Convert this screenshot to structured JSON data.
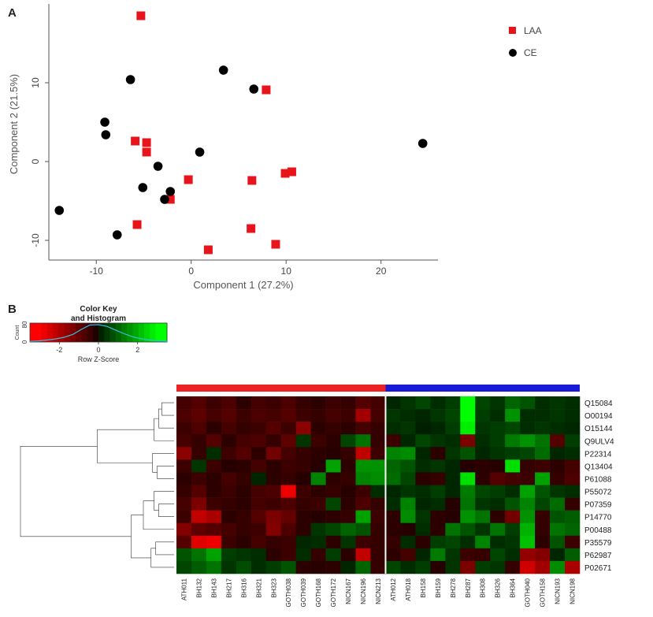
{
  "panels": {
    "a_label": "A",
    "b_label": "B"
  },
  "colors": {
    "laa": "#e8141b",
    "ce": "#000000",
    "axis": "#555555",
    "group_laa": "#ee2222",
    "group_ce": "#1a1ad6",
    "separator": "#ffffff"
  },
  "chart_data": [
    {
      "type": "scatter",
      "xlabel": "Component 1 (27.2%)",
      "ylabel": "Component 2 (21.5%)",
      "xlim": [
        -15,
        26
      ],
      "ylim": [
        -12.5,
        20
      ],
      "xticks": [
        -10,
        0,
        10,
        20
      ],
      "yticks": [
        -10,
        0,
        10
      ],
      "legend_position": "top-right",
      "series": [
        {
          "name": "LAA",
          "marker": "square",
          "x": [
            -5.3,
            -4.7,
            -4.7,
            -5.9,
            7.9,
            -0.3,
            6.4,
            9.9,
            10.6,
            -2.2,
            -5.7,
            6.3,
            8.9,
            1.8
          ],
          "y": [
            18.5,
            2.4,
            1.2,
            2.6,
            9.1,
            -2.3,
            -2.4,
            -1.5,
            -1.3,
            -4.8,
            -8.0,
            -8.5,
            -10.5,
            -11.2
          ]
        },
        {
          "name": "CE",
          "marker": "circle",
          "x": [
            -6.4,
            3.4,
            6.6,
            -9.1,
            -9.0,
            0.9,
            -3.5,
            24.4,
            -5.1,
            -2.2,
            -2.8,
            -13.9,
            -7.8
          ],
          "y": [
            10.4,
            11.6,
            9.2,
            5.0,
            3.4,
            1.2,
            -0.6,
            2.3,
            -3.3,
            -3.8,
            -4.8,
            -6.2,
            -9.3
          ]
        }
      ]
    },
    {
      "type": "heatmap",
      "color_key": {
        "title_line1": "Color Key",
        "title_line2": "and Histogram",
        "count_label": "Count",
        "xlabel": "Row Z-Score",
        "xticks": [
          -2,
          0,
          2
        ],
        "yticks": [
          0,
          80
        ],
        "range": [
          -3.5,
          3.5
        ],
        "histogram": [
          3,
          5,
          9,
          14,
          22,
          35,
          58,
          78,
          80,
          72,
          55,
          38,
          24,
          15,
          9,
          5,
          3
        ]
      },
      "rows": [
        "Q15084",
        "O00194",
        "O15144",
        "Q9ULV4",
        "P22314",
        "Q13404",
        "P61088",
        "P55072",
        "P07359",
        "P14770",
        "P00488",
        "P35579",
        "P62987",
        "P02671"
      ],
      "columns": [
        "ATH011",
        "BH132",
        "BH143",
        "BH217",
        "BH316",
        "BH321",
        "BH323",
        "GOTH038",
        "GOTH039",
        "GOTH168",
        "GOTH172",
        "NICN167",
        "NICN196",
        "NICN213",
        "ATH012",
        "ATH018",
        "BH158",
        "BH159",
        "BH278",
        "BH287",
        "BH308",
        "BH326",
        "BH364",
        "GOTH040",
        "GOTH158",
        "NICN193",
        "NICN198"
      ],
      "groups": [
        {
          "name": "LAA",
          "count": 14
        },
        {
          "name": "CE",
          "count": 13
        }
      ],
      "values": [
        [
          -0.6,
          -0.8,
          -0.5,
          -0.7,
          -0.3,
          -0.6,
          -0.5,
          -0.7,
          -0.4,
          -0.3,
          -0.5,
          -0.4,
          -0.8,
          -0.6,
          0.2,
          0.4,
          0.6,
          0.3,
          0.5,
          3.0,
          0.6,
          0.4,
          1.0,
          0.8,
          0.3,
          0.4,
          0.3
        ],
        [
          -0.7,
          -0.9,
          -0.6,
          -0.8,
          -0.5,
          -0.7,
          -0.6,
          -0.8,
          -0.5,
          -0.4,
          -0.6,
          -0.5,
          -1.8,
          -0.6,
          0.4,
          0.3,
          0.2,
          0.4,
          0.6,
          3.2,
          0.5,
          0.3,
          1.6,
          0.3,
          0.3,
          0.4,
          0.3
        ],
        [
          -0.5,
          -0.7,
          -0.3,
          -0.6,
          -0.4,
          -0.5,
          -0.8,
          -0.5,
          -1.5,
          -0.3,
          -0.4,
          -0.3,
          -0.6,
          -0.4,
          0.3,
          0.4,
          0.1,
          0.2,
          0.5,
          2.8,
          0.4,
          0.5,
          0.6,
          0.3,
          0.4,
          0.3,
          0.2
        ],
        [
          -0.6,
          -0.4,
          -0.8,
          -0.3,
          -0.6,
          -0.7,
          -0.4,
          -0.9,
          0.4,
          -0.5,
          -0.3,
          0.6,
          1.2,
          -0.4,
          -0.5,
          0.2,
          0.6,
          0.4,
          0.3,
          -1.3,
          0.3,
          0.5,
          1.3,
          1.6,
          1.2,
          -0.8,
          0.5
        ],
        [
          -1.5,
          -0.4,
          0.3,
          -0.5,
          -0.8,
          -0.3,
          -1.2,
          -0.6,
          -0.4,
          -0.3,
          -0.2,
          -0.4,
          -2.2,
          -0.5,
          1.4,
          1.5,
          0.2,
          -0.3,
          0.4,
          0.8,
          0.2,
          0.4,
          0.5,
          0.6,
          1.1,
          0.2,
          0.3
        ],
        [
          -0.5,
          0.4,
          -0.5,
          -0.2,
          -0.3,
          -0.6,
          -0.3,
          -0.5,
          -0.4,
          -0.2,
          1.8,
          -0.3,
          1.6,
          1.6,
          1.0,
          0.8,
          0.3,
          0.4,
          0.2,
          -0.2,
          -0.3,
          -0.2,
          2.6,
          -0.4,
          -0.5,
          -0.3,
          -0.6
        ],
        [
          -0.3,
          -0.5,
          -0.3,
          -0.6,
          -0.4,
          0.2,
          -0.3,
          -0.4,
          -0.2,
          1.4,
          -0.3,
          -0.4,
          1.4,
          1.5,
          1.1,
          0.6,
          -0.3,
          -0.4,
          0.2,
          2.6,
          -0.3,
          -0.8,
          -0.6,
          -0.5,
          1.8,
          -0.4,
          -0.7
        ],
        [
          -0.4,
          -0.8,
          -0.3,
          -0.5,
          -0.3,
          -0.6,
          -0.7,
          -2.8,
          -0.5,
          -0.3,
          -0.4,
          -0.2,
          -0.5,
          0.3,
          0.2,
          0.4,
          0.3,
          0.5,
          0.2,
          1.3,
          0.6,
          0.5,
          0.3,
          1.8,
          0.8,
          0.4,
          0.3
        ],
        [
          -0.6,
          -1.3,
          -0.5,
          -0.4,
          -0.3,
          -0.6,
          -0.5,
          -0.7,
          -0.4,
          -0.5,
          0.6,
          -0.3,
          -0.7,
          -0.4,
          0.3,
          1.4,
          0.2,
          0.3,
          -0.2,
          1.2,
          0.4,
          0.3,
          0.8,
          1.4,
          0.6,
          1.1,
          -0.4
        ],
        [
          -0.5,
          -2.2,
          -1.9,
          -0.3,
          -0.4,
          -0.8,
          -1.3,
          -1.0,
          -0.3,
          -0.2,
          -0.3,
          -0.4,
          1.8,
          -0.5,
          -0.3,
          1.5,
          0.4,
          -0.3,
          -0.2,
          1.6,
          1.2,
          -0.3,
          -1.2,
          1.6,
          -0.4,
          0.8,
          0.9
        ],
        [
          -1.4,
          -0.9,
          -0.8,
          -0.6,
          -0.4,
          -0.5,
          -1.4,
          -0.7,
          -0.3,
          0.4,
          0.6,
          1.0,
          0.8,
          -0.4,
          -0.3,
          -0.2,
          0.3,
          -0.3,
          1.2,
          0.8,
          0.4,
          1.2,
          0.5,
          2.0,
          -0.4,
          1.2,
          1.0
        ],
        [
          -0.8,
          -2.6,
          -2.8,
          -0.5,
          -0.3,
          -0.6,
          -0.4,
          -0.5,
          0.2,
          0.3,
          -0.3,
          0.4,
          -0.5,
          -0.4,
          -0.4,
          0.3,
          -0.3,
          0.5,
          0.6,
          0.3,
          1.4,
          0.3,
          0.4,
          2.2,
          -0.3,
          0.8,
          -0.5
        ],
        [
          0.8,
          1.2,
          1.8,
          0.5,
          0.4,
          0.3,
          -0.3,
          -0.5,
          0.3,
          -0.4,
          0.5,
          -0.3,
          -2.2,
          -0.4,
          -0.3,
          -0.6,
          0.2,
          1.3,
          0.4,
          -0.5,
          -0.4,
          0.6,
          0.3,
          -1.6,
          -1.4,
          0.2,
          0.9
        ],
        [
          0.6,
          0.9,
          1.2,
          0.4,
          0.7,
          0.3,
          0.5,
          0.8,
          -0.3,
          -0.2,
          -0.3,
          0.2,
          1.0,
          -0.4,
          0.6,
          0.3,
          0.5,
          -0.2,
          0.4,
          -1.3,
          0.5,
          0.4,
          -0.4,
          -2.4,
          -1.8,
          1.5,
          -1.9
        ]
      ]
    }
  ]
}
